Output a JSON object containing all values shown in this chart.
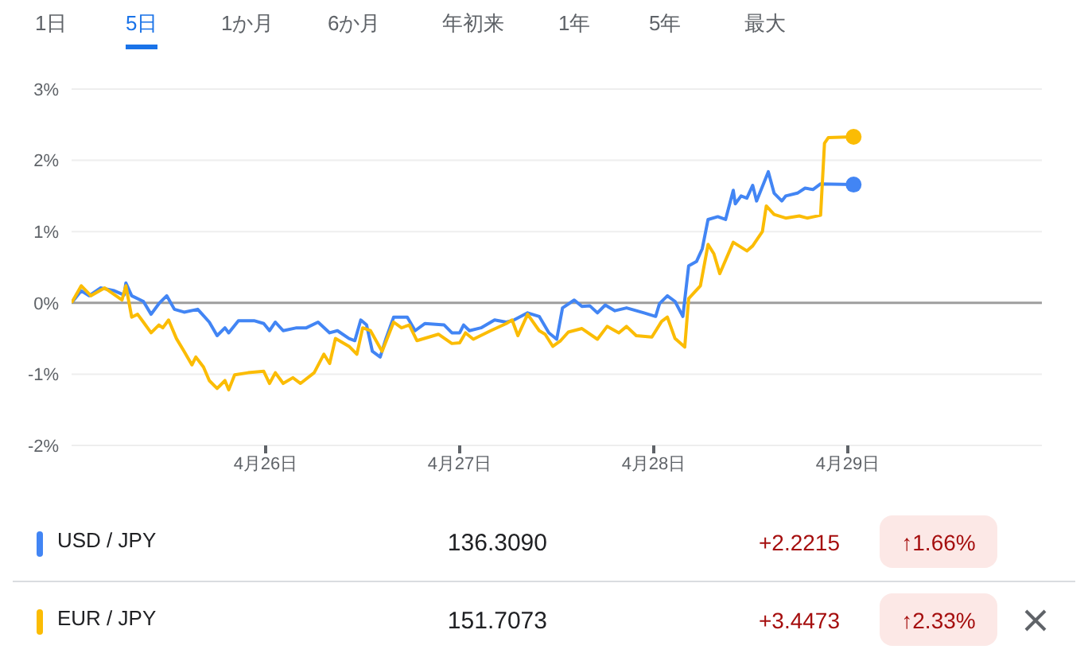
{
  "chart_data": {
    "type": "line",
    "annotations": [
      "1日",
      "5日",
      "1か月",
      "6か月",
      "年初来",
      "1年",
      "5年",
      "最大",
      "136.3090",
      "+2.2215",
      "↑1.66%",
      "151.7073",
      "+3.4473",
      "↑2.33%"
    ],
    "xlim": [
      "--04-25",
      "--04-30"
    ],
    "xticks": [
      {
        "value": "--04-26",
        "label": "4月26日"
      },
      {
        "value": "--04-27",
        "label": "4月27日"
      },
      {
        "value": "--04-28",
        "label": "4月28日"
      },
      {
        "value": "--04-29",
        "label": "4月29日"
      }
    ],
    "ylim": [
      -2,
      3
    ],
    "yticks": [
      {
        "value": -2,
        "label": "-2%"
      },
      {
        "value": -1,
        "label": "-1%"
      },
      {
        "value": 0,
        "label": "0%"
      },
      {
        "value": 1,
        "label": "1%"
      },
      {
        "value": 2,
        "label": "2%"
      },
      {
        "value": 3,
        "label": "3%"
      }
    ],
    "grid": "y",
    "legend": "bottom",
    "ref_lines": [
      {
        "axis": "y",
        "value": 0,
        "color": "#9e9e9e"
      }
    ],
    "series": [
      {
        "name": "USD / JPY",
        "color": "#4285f4",
        "x": [
          "--04-25T00:00",
          "--04-25T01:12",
          "--04-25T02:10",
          "--04-25T03:36",
          "--04-25T05:17",
          "--04-25T06:29",
          "--04-25T06:43",
          "--04-25T07:26",
          "--04-25T08:53",
          "--04-25T09:50",
          "--04-25T10:48",
          "--04-25T11:46",
          "--04-25T12:43",
          "--04-25T13:55",
          "--04-25T15:36",
          "--04-25T17:02",
          "--04-25T18:00",
          "--04-25T18:58",
          "--04-25T19:26",
          "--04-25T20:38",
          "--04-25T22:34",
          "--04-25T23:46",
          "--04-26T00:29",
          "--04-26T01:12",
          "--04-26T02:10",
          "--04-26T03:50",
          "--04-26T05:02",
          "--04-26T06:29",
          "--04-26T07:55",
          "--04-26T08:53",
          "--04-26T10:19",
          "--04-26T11:02",
          "--04-26T11:46",
          "--04-26T12:29",
          "--04-26T13:12",
          "--04-26T14:10",
          "--04-26T14:53",
          "--04-26T15:50",
          "--04-26T17:31",
          "--04-26T18:29",
          "--04-26T19:41",
          "--04-26T22:05",
          "--04-26T23:02",
          "--04-27T00:00",
          "--04-27T00:29",
          "--04-27T01:12",
          "--04-27T02:38",
          "--04-27T04:19",
          "--04-27T05:46",
          "--04-27T06:43",
          "--04-27T08:24",
          "--04-27T09:50",
          "--04-27T11:02",
          "--04-27T12:00",
          "--04-27T12:43",
          "--04-27T14:10",
          "--04-27T15:07",
          "--04-27T16:05",
          "--04-27T17:02",
          "--04-27T18:00",
          "--04-27T19:12",
          "--04-27T20:38",
          "--04-27T22:48",
          "--04-28T00:14",
          "--04-28T00:43",
          "--04-28T01:41",
          "--04-28T02:38",
          "--04-28T03:36",
          "--04-28T04:19",
          "--04-28T05:17",
          "--04-28T06:00",
          "--04-28T06:43",
          "--04-28T07:55",
          "--04-28T08:53",
          "--04-28T09:50",
          "--04-28T10:05",
          "--04-28T10:48",
          "--04-28T11:31",
          "--04-28T12:14",
          "--04-28T12:43",
          "--04-28T14:10",
          "--04-28T14:53",
          "--04-28T15:50",
          "--04-28T16:19",
          "--04-28T17:46",
          "--04-28T18:43",
          "--04-28T19:41",
          "--04-28T20:38",
          "--04-29T00:43"
        ],
        "values": [
          0,
          0.17,
          0.1,
          0.21,
          0.17,
          0.11,
          0.28,
          0.1,
          0.02,
          -0.16,
          -0.01,
          0.1,
          -0.09,
          -0.13,
          -0.09,
          -0.27,
          -0.46,
          -0.35,
          -0.42,
          -0.25,
          -0.25,
          -0.29,
          -0.39,
          -0.27,
          -0.39,
          -0.35,
          -0.35,
          -0.27,
          -0.42,
          -0.39,
          -0.5,
          -0.53,
          -0.24,
          -0.31,
          -0.68,
          -0.76,
          -0.5,
          -0.2,
          -0.2,
          -0.39,
          -0.29,
          -0.31,
          -0.42,
          -0.42,
          -0.31,
          -0.39,
          -0.35,
          -0.24,
          -0.27,
          -0.24,
          -0.14,
          -0.19,
          -0.42,
          -0.51,
          -0.07,
          0.04,
          -0.05,
          -0.04,
          -0.14,
          -0.03,
          -0.11,
          -0.07,
          -0.14,
          -0.19,
          -0.01,
          0.1,
          0.02,
          -0.19,
          0.52,
          0.58,
          0.76,
          1.17,
          1.21,
          1.17,
          1.58,
          1.39,
          1.5,
          1.47,
          1.65,
          1.43,
          1.84,
          1.54,
          1.43,
          1.5,
          1.54,
          1.61,
          1.59,
          1.67,
          1.66
        ]
      },
      {
        "name": "EUR / JPY",
        "color": "#fbbc04",
        "x": [
          "--04-25T00:00",
          "--04-25T01:12",
          "--04-25T02:24",
          "--04-25T04:05",
          "--04-25T06:14",
          "--04-25T06:43",
          "--04-25T07:26",
          "--04-25T08:10",
          "--04-25T08:53",
          "--04-25T09:50",
          "--04-25T10:48",
          "--04-25T11:17",
          "--04-25T12:00",
          "--04-25T12:58",
          "--04-25T13:55",
          "--04-25T14:53",
          "--04-25T15:22",
          "--04-25T16:19",
          "--04-25T17:02",
          "--04-25T18:00",
          "--04-25T18:58",
          "--04-25T19:26",
          "--04-25T20:10",
          "--04-25T21:50",
          "--04-25T23:46",
          "--04-26T00:29",
          "--04-26T01:12",
          "--04-26T02:10",
          "--04-26T03:22",
          "--04-26T04:19",
          "--04-26T06:00",
          "--04-26T07:12",
          "--04-26T07:55",
          "--04-26T08:38",
          "--04-26T10:19",
          "--04-26T11:17",
          "--04-26T12:00",
          "--04-26T12:58",
          "--04-26T14:24",
          "--04-26T15:50",
          "--04-26T16:48",
          "--04-26T17:46",
          "--04-26T18:43",
          "--04-26T21:22",
          "--04-26T23:02",
          "--04-27T00:00",
          "--04-27T00:43",
          "--04-27T01:41",
          "--04-27T03:50",
          "--04-27T05:46",
          "--04-27T06:29",
          "--04-27T07:12",
          "--04-27T08:24",
          "--04-27T09:50",
          "--04-27T10:34",
          "--04-27T11:31",
          "--04-27T12:29",
          "--04-27T13:26",
          "--04-27T15:07",
          "--04-27T17:02",
          "--04-27T18:14",
          "--04-27T19:41",
          "--04-27T20:38",
          "--04-27T21:50",
          "--04-27T23:46",
          "--04-28T00:58",
          "--04-28T01:41",
          "--04-28T02:38",
          "--04-28T03:50",
          "--04-28T04:19",
          "--04-28T05:46",
          "--04-28T06:43",
          "--04-28T07:26",
          "--04-28T08:10",
          "--04-28T09:50",
          "--04-28T11:31",
          "--04-28T12:14",
          "--04-28T13:26",
          "--04-28T13:55",
          "--04-28T14:53",
          "--04-28T16:19",
          "--04-28T18:00",
          "--04-28T18:58",
          "--04-28T20:38",
          "--04-28T21:07",
          "--04-28T21:36",
          "--04-29T00:43"
        ],
        "values": [
          0,
          0.24,
          0.1,
          0.21,
          0.04,
          0.24,
          -0.2,
          -0.16,
          -0.27,
          -0.42,
          -0.31,
          -0.35,
          -0.24,
          -0.5,
          -0.68,
          -0.87,
          -0.76,
          -0.9,
          -1.09,
          -1.2,
          -1.09,
          -1.22,
          -1.01,
          -0.98,
          -0.96,
          -1.13,
          -0.98,
          -1.13,
          -1.05,
          -1.13,
          -0.98,
          -0.72,
          -0.85,
          -0.5,
          -0.61,
          -0.72,
          -0.35,
          -0.39,
          -0.68,
          -0.27,
          -0.35,
          -0.31,
          -0.53,
          -0.44,
          -0.57,
          -0.56,
          -0.42,
          -0.51,
          -0.39,
          -0.29,
          -0.24,
          -0.46,
          -0.16,
          -0.39,
          -0.44,
          -0.61,
          -0.53,
          -0.41,
          -0.36,
          -0.51,
          -0.33,
          -0.42,
          -0.33,
          -0.46,
          -0.48,
          -0.26,
          -0.2,
          -0.5,
          -0.62,
          0.06,
          0.24,
          0.82,
          0.69,
          0.41,
          0.85,
          0.73,
          0.8,
          1.0,
          1.36,
          1.24,
          1.19,
          1.22,
          1.19,
          1.23,
          2.24,
          2.32,
          2.33
        ]
      }
    ]
  }
}
